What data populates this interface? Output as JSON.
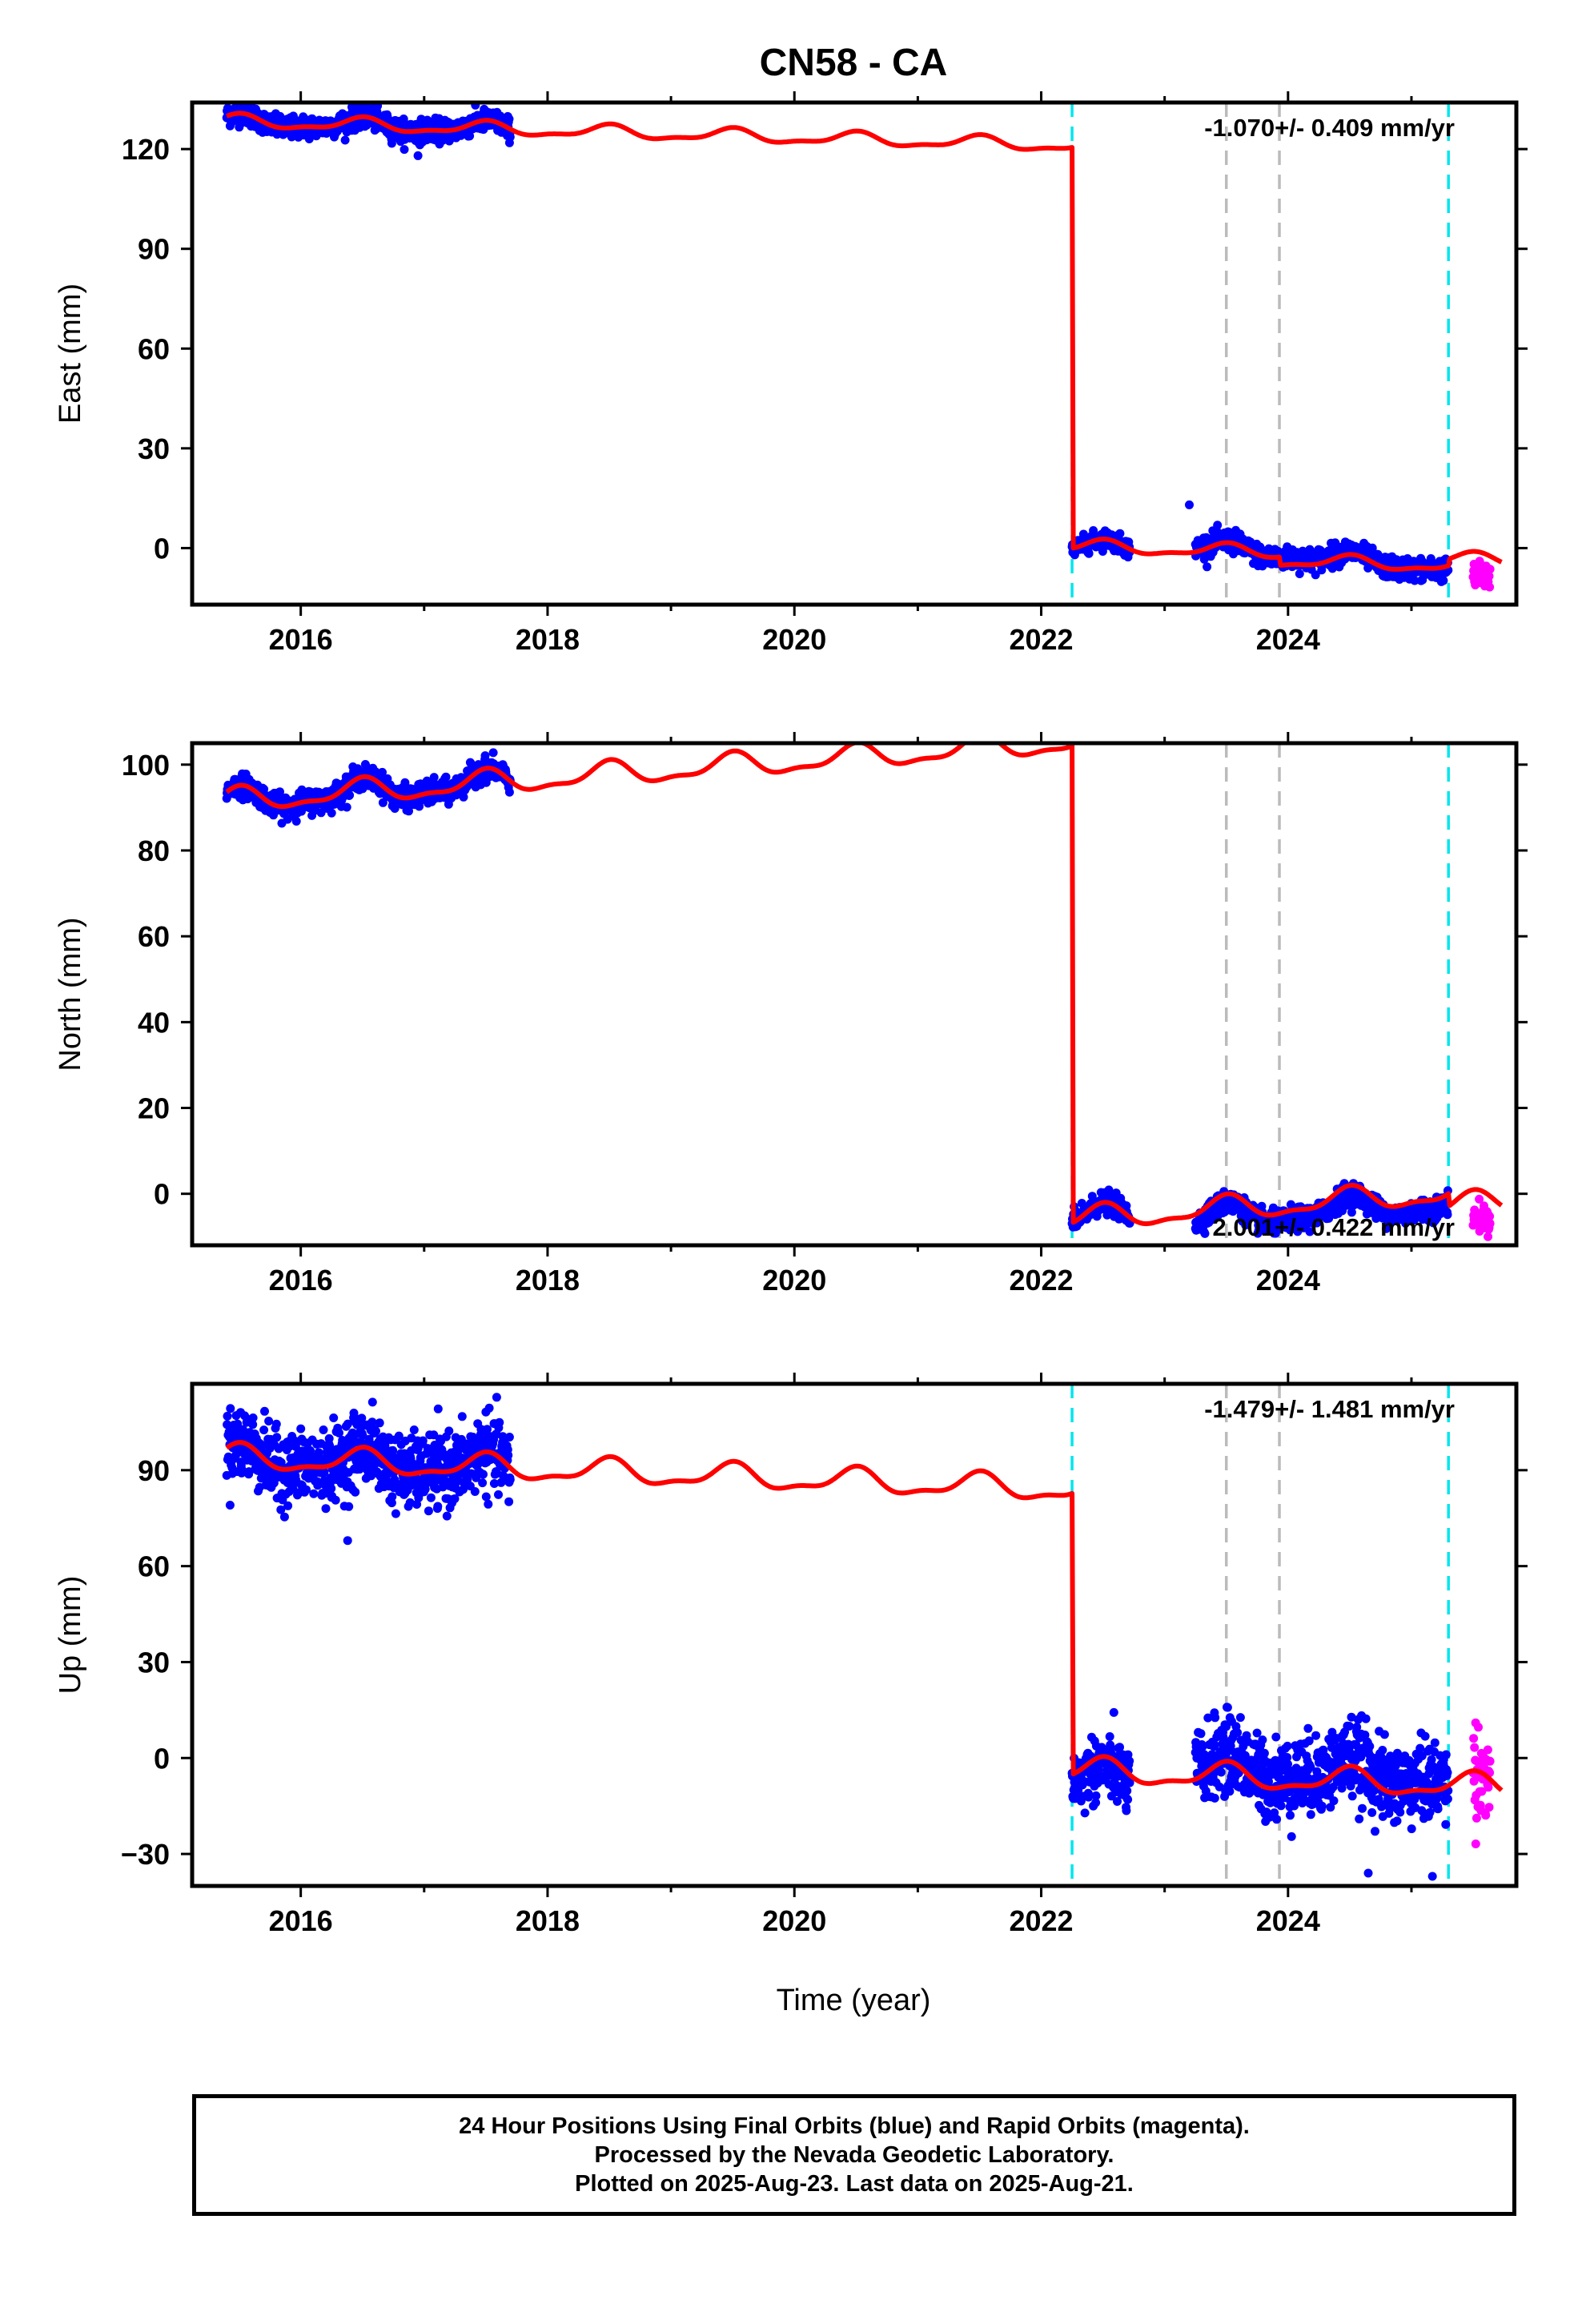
{
  "page": {
    "title": "CN58 - CA",
    "xlabel": "Time (year)"
  },
  "footer": {
    "line1": "24 Hour Positions Using Final Orbits (blue) and Rapid Orbits (magenta).",
    "line2": "Processed by the Nevada Geodetic Laboratory.",
    "line3": "Plotted on 2025-Aug-23. Last data on 2025-Aug-21."
  },
  "colors": {
    "final_orbits": "#0000ff",
    "rapid_orbits": "#ff00ff",
    "model": "#ff0000",
    "equipment_change": "#00e5ee",
    "other_event": "#bbbbbb"
  },
  "chart_data": [
    {
      "type": "scatter",
      "component": "East",
      "ylabel": "East (mm)",
      "annotation": "-1.070+/- 0.409 mm/yr",
      "annotation_position": "top-right",
      "xlim": [
        2015.12,
        2025.85
      ],
      "ylim": [
        -17,
        134
      ],
      "xticks": [
        2016,
        2018,
        2020,
        2022,
        2024
      ],
      "xtick_labels": [
        "2016",
        "2018",
        "2020",
        "2022",
        "2024"
      ],
      "yticks": [
        0,
        30,
        60,
        90,
        120
      ],
      "ytick_labels": [
        "0",
        "30",
        "60",
        "90",
        "120"
      ],
      "equipment_change_lines": [
        2022.25,
        2025.3
      ],
      "other_event_lines": [
        2023.5,
        2023.93
      ],
      "offset": {
        "x": 2022.25,
        "before": 120.5,
        "after": 0
      },
      "segments": [
        {
          "x": [
            2015.4,
            2017.7
          ],
          "intercept": 128.4,
          "slope": -1.07,
          "seasonal_amp": 1.8,
          "noise": 1.6
        },
        {
          "x": [
            2022.25,
            2022.72
          ],
          "intercept": 0.5,
          "slope": -1.07,
          "seasonal_amp": 1.8,
          "noise": 1.3
        },
        {
          "x": [
            2023.25,
            2025.3
          ],
          "intercept": 0.5,
          "slope": -3.2,
          "seasonal_amp": 1.8,
          "noise": 1.6
        }
      ],
      "rapid_segment": {
        "x": [
          2025.5,
          2025.64
        ],
        "center": -8.5,
        "noise": 2.0
      },
      "outliers": [
        {
          "x": 2016.95,
          "y": 118
        },
        {
          "x": 2023.2,
          "y": 13
        }
      ],
      "model_reference_x": 2015.4,
      "model_pre_intercept": 128.4,
      "model_post_intercept": 0.5,
      "model_slope": -1.07,
      "model_seasonal_amp": 1.8,
      "model_post_steps": [
        {
          "x": 2023.93,
          "dy": -2.5
        },
        {
          "x": 2025.3,
          "dy": 2.0
        }
      ]
    },
    {
      "type": "scatter",
      "component": "North",
      "ylabel": "North (mm)",
      "annotation": "2.001+/- 0.422 mm/yr",
      "annotation_position": "bottom-right",
      "xlim": [
        2015.12,
        2025.85
      ],
      "ylim": [
        -12,
        105
      ],
      "xticks": [
        2016,
        2018,
        2020,
        2022,
        2024
      ],
      "xtick_labels": [
        "2016",
        "2018",
        "2020",
        "2022",
        "2024"
      ],
      "yticks": [
        0,
        20,
        40,
        60,
        80,
        100
      ],
      "ytick_labels": [
        "0",
        "20",
        "40",
        "60",
        "80",
        "100"
      ],
      "equipment_change_lines": [
        2022.25,
        2025.3
      ],
      "other_event_lines": [
        2023.5,
        2023.93
      ],
      "offset": {
        "x": 2022.25,
        "before": 103.5,
        "after": -6
      },
      "segments": [
        {
          "x": [
            2015.4,
            2017.7
          ],
          "intercept": 91.5,
          "slope": 2.0,
          "seasonal_amp": 2.5,
          "noise": 1.3
        },
        {
          "x": [
            2022.25,
            2022.72
          ],
          "intercept": -6,
          "slope": 2.0,
          "seasonal_amp": 2.5,
          "noise": 1.2
        },
        {
          "x": [
            2023.25,
            2025.3
          ],
          "intercept": -6,
          "slope": 2.0,
          "seasonal_amp": 2.5,
          "noise": 1.3
        }
      ],
      "rapid_segment": {
        "x": [
          2025.5,
          2025.64
        ],
        "center": -5.5,
        "noise": 1.5
      },
      "outliers": [
        {
          "x": 2025.62,
          "y": -10
        }
      ],
      "model_reference_x": 2015.4,
      "model_pre_intercept": 91.5,
      "model_post_intercept": -6,
      "model_slope": 2.0,
      "model_seasonal_amp": 2.5,
      "model_post_steps": [
        {
          "x": 2025.3,
          "dy": -3.0
        }
      ]
    },
    {
      "type": "scatter",
      "component": "Up",
      "ylabel": "Up (mm)",
      "annotation": "-1.479+/- 1.481 mm/yr",
      "annotation_position": "top-right",
      "xlim": [
        2015.12,
        2025.85
      ],
      "ylim": [
        -40,
        117
      ],
      "xticks": [
        2016,
        2018,
        2020,
        2022,
        2024
      ],
      "xtick_labels": [
        "2016",
        "2018",
        "2020",
        "2022",
        "2024"
      ],
      "yticks": [
        -30,
        0,
        30,
        60,
        90
      ],
      "ytick_labels": [
        "−30",
        "0",
        "30",
        "60",
        "90"
      ],
      "equipment_change_lines": [
        2022.25,
        2025.3
      ],
      "other_event_lines": [
        2023.5,
        2023.93
      ],
      "offset": {
        "x": 2022.25,
        "before": 84,
        "after": -7
      },
      "segments": [
        {
          "x": [
            2015.4,
            2017.7
          ],
          "intercept": 94,
          "slope": -1.48,
          "seasonal_amp": 3.5,
          "noise": 5.5
        },
        {
          "x": [
            2022.25,
            2022.72
          ],
          "intercept": -7,
          "slope": -1.48,
          "seasonal_amp": 3.5,
          "noise": 5.0
        },
        {
          "x": [
            2023.25,
            2025.3
          ],
          "intercept": -3,
          "slope": -1.48,
          "seasonal_amp": 3.5,
          "noise": 6.0
        }
      ],
      "rapid_segment": {
        "x": [
          2025.5,
          2025.64
        ],
        "center": -5,
        "noise": 7.0
      },
      "outliers": [
        {
          "x": 2016.38,
          "y": 68
        },
        {
          "x": 2025.52,
          "y": 11
        },
        {
          "x": 2024.65,
          "y": -36
        },
        {
          "x": 2025.17,
          "y": -37
        }
      ],
      "model_reference_x": 2015.4,
      "model_pre_intercept": 94,
      "model_post_intercept": -4,
      "model_slope": -1.48,
      "model_seasonal_amp": 3.5,
      "model_post_steps": [
        {
          "x": 2025.3,
          "dy": 0
        }
      ]
    }
  ]
}
